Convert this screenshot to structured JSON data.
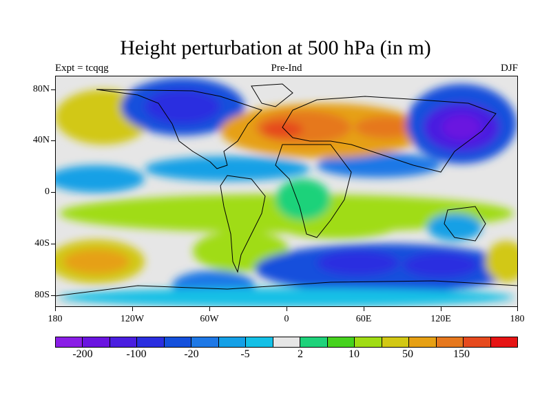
{
  "title": "Height perturbation at 500 hPa (in m)",
  "subtitle_left": "Expt = tcqqg",
  "subtitle_center": "Pre-Ind",
  "subtitle_right": "DJF",
  "y_ticks": [
    "80N",
    "40N",
    "0",
    "40S",
    "80S"
  ],
  "x_ticks": [
    "180",
    "120W",
    "60W",
    "0",
    "60E",
    "120E",
    "180"
  ],
  "colorbar": {
    "colors": [
      "#8a1ee6",
      "#6a14e0",
      "#4a1ee0",
      "#2a2ee0",
      "#1450dc",
      "#1e78e6",
      "#14a0e6",
      "#14c0e6",
      "#e6e6e6",
      "#1ed27a",
      "#46d21e",
      "#a0dc14",
      "#d2c814",
      "#e6a014",
      "#e6781e",
      "#e64a1e",
      "#e61414"
    ],
    "labels": [
      "-200",
      "-100",
      "-20",
      "-5",
      "2",
      "10",
      "50",
      "150"
    ]
  },
  "chart_data": {
    "type": "heatmap",
    "title": "Height perturbation at 500 hPa (in m)",
    "lon_range": [
      -180,
      180
    ],
    "lat_range": [
      -90,
      90
    ],
    "units": "m",
    "contour_levels": [
      -200,
      -150,
      -100,
      -50,
      -20,
      -10,
      -5,
      -2,
      2,
      5,
      10,
      20,
      50,
      100,
      150,
      200
    ],
    "anomaly_centers": [
      {
        "lon": 155,
        "lat": 48,
        "value": -210
      },
      {
        "lon": -95,
        "lat": 62,
        "value": -150
      },
      {
        "lon": 5,
        "lat": 45,
        "value": 160
      },
      {
        "lon": 70,
        "lat": 48,
        "value": 110
      },
      {
        "lon": -145,
        "lat": 40,
        "value": 70
      },
      {
        "lon": -160,
        "lat": -50,
        "value": 90
      },
      {
        "lon": 55,
        "lat": -50,
        "value": -150
      },
      {
        "lon": 105,
        "lat": -55,
        "value": -140
      },
      {
        "lon": -100,
        "lat": -65,
        "value": -60
      },
      {
        "lon": -30,
        "lat": -40,
        "value": 40
      },
      {
        "lon": 40,
        "lat": 0,
        "value": 8
      }
    ]
  }
}
